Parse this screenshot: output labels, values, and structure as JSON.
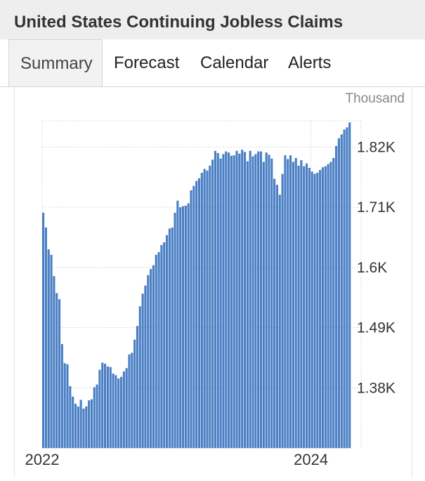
{
  "header": {
    "title": "United States Continuing Jobless Claims"
  },
  "tabs": [
    {
      "label": "Summary",
      "active": true
    },
    {
      "label": "Forecast",
      "active": false
    },
    {
      "label": "Calendar",
      "active": false
    },
    {
      "label": "Alerts",
      "active": false
    }
  ],
  "colors": {
    "bar": "#4a7fc4",
    "grid": "#d9d9d9",
    "axis_text": "#333333",
    "unit_text": "#888888"
  },
  "chart_data": {
    "type": "bar",
    "unit": "Thousand",
    "ylim": [
      1270,
      1868
    ],
    "yticks": [
      {
        "value": 1380,
        "label": "1.38K"
      },
      {
        "value": 1490,
        "label": "1.49K"
      },
      {
        "value": 1600,
        "label": "1.6K"
      },
      {
        "value": 1710,
        "label": "1.71K"
      },
      {
        "value": 1820,
        "label": "1.82K"
      }
    ],
    "xticks": [
      {
        "index": 0,
        "label": "2022"
      },
      {
        "index": 100,
        "label": "2024"
      }
    ],
    "grid": true,
    "values": [
      1700,
      1673,
      1633,
      1623,
      1584,
      1553,
      1542,
      1460,
      1425,
      1423,
      1383,
      1364,
      1351,
      1346,
      1358,
      1342,
      1346,
      1357,
      1359,
      1381,
      1386,
      1413,
      1426,
      1424,
      1419,
      1418,
      1406,
      1403,
      1397,
      1400,
      1410,
      1416,
      1441,
      1444,
      1468,
      1493,
      1529,
      1552,
      1567,
      1586,
      1597,
      1604,
      1623,
      1628,
      1641,
      1646,
      1659,
      1671,
      1673,
      1700,
      1722,
      1710,
      1712,
      1713,
      1717,
      1741,
      1749,
      1758,
      1763,
      1773,
      1780,
      1777,
      1786,
      1797,
      1813,
      1809,
      1799,
      1807,
      1812,
      1810,
      1804,
      1805,
      1813,
      1808,
      1815,
      1811,
      1794,
      1813,
      1803,
      1807,
      1812,
      1812,
      1793,
      1810,
      1806,
      1799,
      1762,
      1751,
      1733,
      1771,
      1805,
      1798,
      1805,
      1793,
      1800,
      1786,
      1796,
      1785,
      1790,
      1782,
      1775,
      1771,
      1773,
      1778,
      1783,
      1785,
      1789,
      1793,
      1800,
      1822,
      1836,
      1843,
      1852,
      1856,
      1865
    ]
  }
}
